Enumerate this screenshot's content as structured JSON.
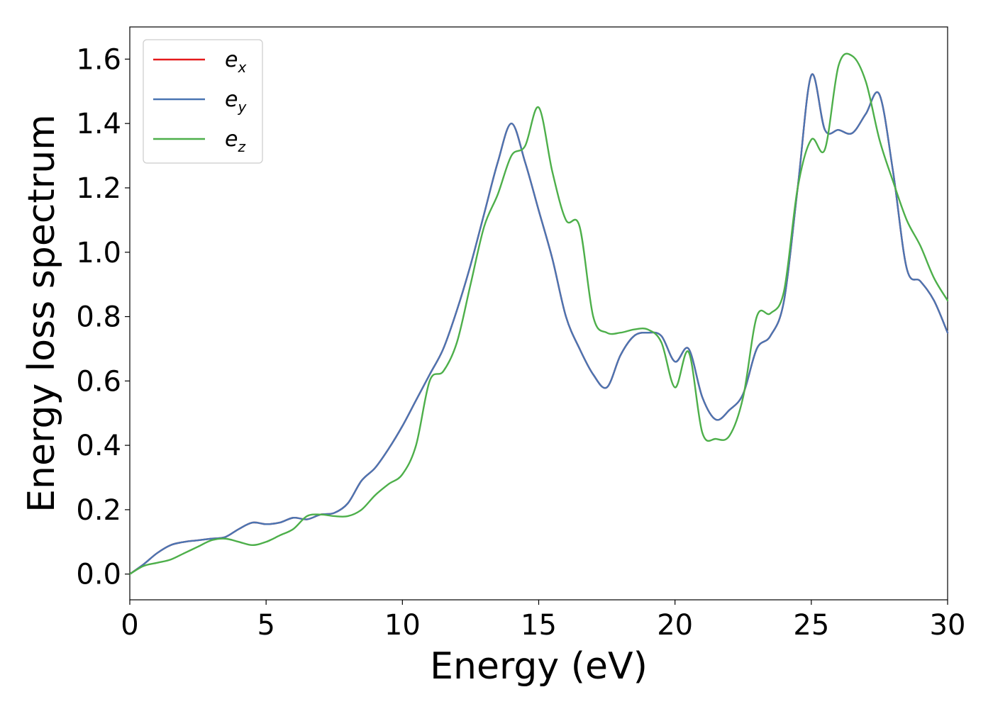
{
  "chart_data": {
    "type": "line",
    "xlabel": "Energy (eV)",
    "ylabel": "Energy loss spectrum",
    "xlim": [
      0,
      30
    ],
    "ylim": [
      -0.08,
      1.7
    ],
    "xticks": [
      "0",
      "5",
      "10",
      "15",
      "20",
      "25",
      "30"
    ],
    "yticks": [
      "0.0",
      "0.2",
      "0.4",
      "0.6",
      "0.8",
      "1.0",
      "1.2",
      "1.4",
      "1.6"
    ],
    "grid": false,
    "legend_position": "top-left",
    "series": [
      {
        "name": "e_x",
        "label_base": "e",
        "label_sub": "x",
        "color": "#e41a1c",
        "x": [
          0,
          0.5,
          1,
          1.5,
          2,
          2.5,
          3,
          3.5,
          4,
          4.5,
          5,
          5.5,
          6,
          6.5,
          7,
          7.5,
          8,
          8.5,
          9,
          9.5,
          10,
          10.5,
          11,
          11.5,
          12,
          12.5,
          13,
          13.5,
          14,
          14.5,
          15,
          15.5,
          16,
          16.5,
          17,
          17.5,
          18,
          18.5,
          19,
          19.5,
          20,
          20.5,
          21,
          21.5,
          22,
          22.5,
          23,
          23.5,
          24,
          24.5,
          25,
          25.5,
          26,
          26.5,
          27,
          27.5,
          28,
          28.5,
          29,
          29.5,
          30
        ],
        "y": [
          0.0,
          0.03,
          0.065,
          0.09,
          0.1,
          0.105,
          0.11,
          0.115,
          0.14,
          0.16,
          0.155,
          0.16,
          0.175,
          0.17,
          0.185,
          0.19,
          0.22,
          0.29,
          0.33,
          0.39,
          0.46,
          0.54,
          0.62,
          0.7,
          0.82,
          0.96,
          1.12,
          1.28,
          1.4,
          1.28,
          1.13,
          0.98,
          0.8,
          0.7,
          0.62,
          0.58,
          0.68,
          0.74,
          0.75,
          0.74,
          0.66,
          0.7,
          0.55,
          0.48,
          0.51,
          0.56,
          0.7,
          0.74,
          0.85,
          1.2,
          1.55,
          1.38,
          1.38,
          1.37,
          1.43,
          1.49,
          1.25,
          0.95,
          0.91,
          0.85,
          0.75
        ]
      },
      {
        "name": "e_y",
        "label_base": "e",
        "label_sub": "y",
        "color": "#4a75b2",
        "x": [
          0,
          0.5,
          1,
          1.5,
          2,
          2.5,
          3,
          3.5,
          4,
          4.5,
          5,
          5.5,
          6,
          6.5,
          7,
          7.5,
          8,
          8.5,
          9,
          9.5,
          10,
          10.5,
          11,
          11.5,
          12,
          12.5,
          13,
          13.5,
          14,
          14.5,
          15,
          15.5,
          16,
          16.5,
          17,
          17.5,
          18,
          18.5,
          19,
          19.5,
          20,
          20.5,
          21,
          21.5,
          22,
          22.5,
          23,
          23.5,
          24,
          24.5,
          25,
          25.5,
          26,
          26.5,
          27,
          27.5,
          28,
          28.5,
          29,
          29.5,
          30
        ],
        "y": [
          0.0,
          0.03,
          0.065,
          0.09,
          0.1,
          0.105,
          0.11,
          0.115,
          0.14,
          0.16,
          0.155,
          0.16,
          0.175,
          0.17,
          0.185,
          0.19,
          0.22,
          0.29,
          0.33,
          0.39,
          0.46,
          0.54,
          0.62,
          0.7,
          0.82,
          0.96,
          1.12,
          1.28,
          1.4,
          1.28,
          1.13,
          0.98,
          0.8,
          0.7,
          0.62,
          0.58,
          0.68,
          0.74,
          0.75,
          0.74,
          0.66,
          0.7,
          0.55,
          0.48,
          0.51,
          0.56,
          0.7,
          0.74,
          0.85,
          1.2,
          1.55,
          1.38,
          1.38,
          1.37,
          1.43,
          1.49,
          1.25,
          0.95,
          0.91,
          0.85,
          0.75
        ]
      },
      {
        "name": "e_z",
        "label_base": "e",
        "label_sub": "z",
        "color": "#4daf4a",
        "x": [
          0,
          0.5,
          1,
          1.5,
          2,
          2.5,
          3,
          3.5,
          4,
          4.5,
          5,
          5.5,
          6,
          6.5,
          7,
          7.5,
          8,
          8.5,
          9,
          9.5,
          10,
          10.5,
          11,
          11.5,
          12,
          12.5,
          13,
          13.5,
          14,
          14.5,
          15,
          15.5,
          16,
          16.5,
          17,
          17.5,
          18,
          18.5,
          19,
          19.5,
          20,
          20.5,
          21,
          21.5,
          22,
          22.5,
          23,
          23.5,
          24,
          24.5,
          25,
          25.5,
          26,
          26.5,
          27,
          27.5,
          28,
          28.5,
          29,
          29.5,
          30
        ],
        "y": [
          0.0,
          0.025,
          0.035,
          0.045,
          0.065,
          0.085,
          0.105,
          0.11,
          0.1,
          0.09,
          0.1,
          0.12,
          0.14,
          0.18,
          0.185,
          0.18,
          0.18,
          0.2,
          0.245,
          0.28,
          0.31,
          0.4,
          0.6,
          0.63,
          0.72,
          0.9,
          1.08,
          1.18,
          1.3,
          1.33,
          1.45,
          1.25,
          1.1,
          1.08,
          0.8,
          0.75,
          0.75,
          0.76,
          0.76,
          0.72,
          0.58,
          0.69,
          0.44,
          0.42,
          0.43,
          0.55,
          0.8,
          0.81,
          0.88,
          1.2,
          1.35,
          1.32,
          1.58,
          1.61,
          1.53,
          1.35,
          1.22,
          1.1,
          1.02,
          0.92,
          0.85
        ]
      }
    ]
  }
}
